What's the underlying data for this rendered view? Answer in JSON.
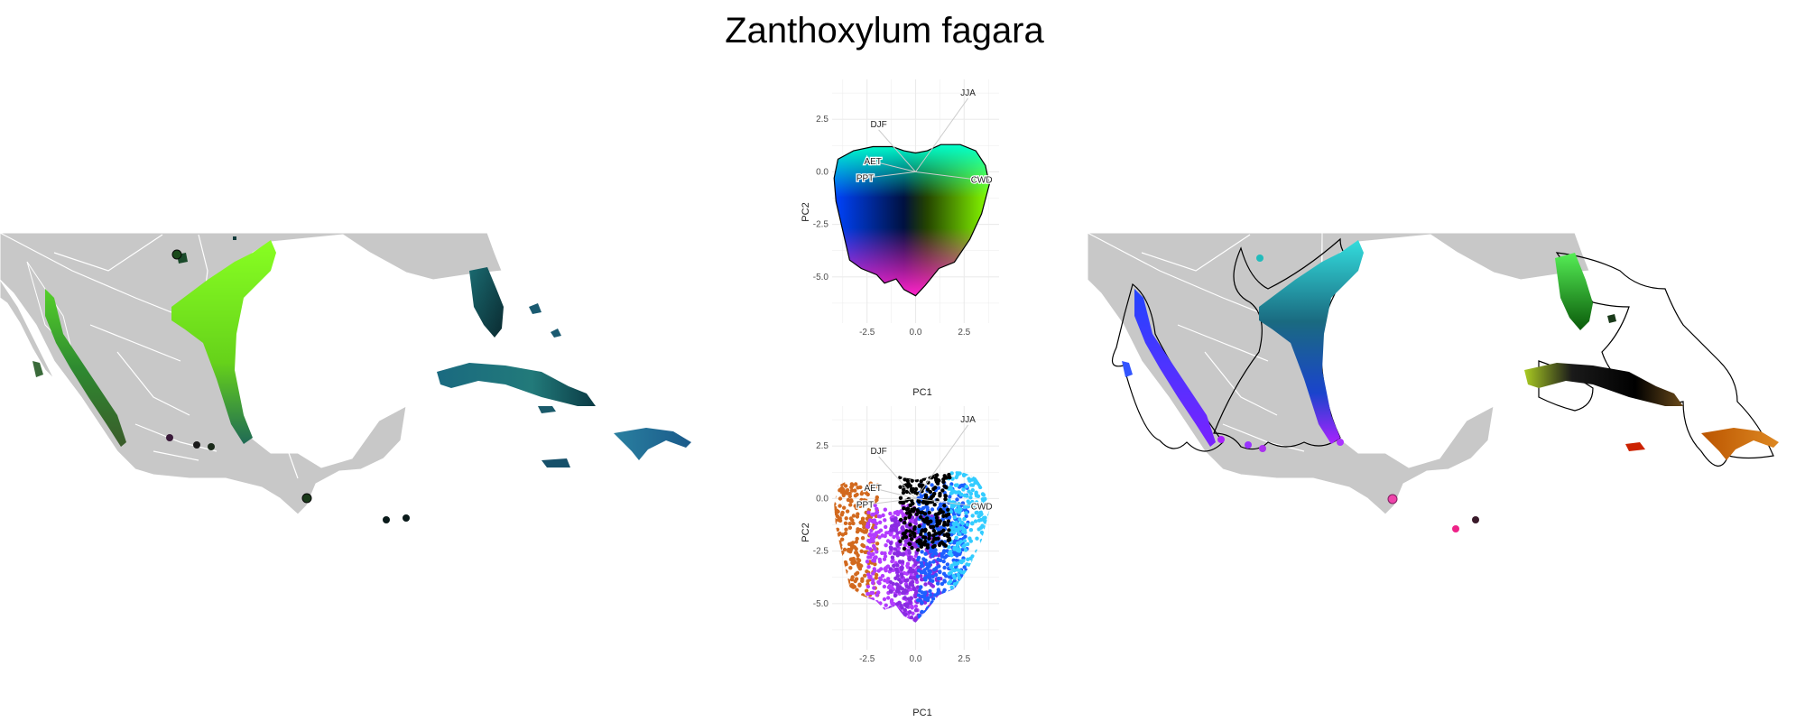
{
  "title": "Zanthoxylum fagara",
  "colors": {
    "land": "#c8c8c8",
    "border": "#ffffff",
    "grid": "#ebebeb"
  },
  "chart_data": [
    {
      "type": "scatter",
      "panel": "PCA colour-space (top)",
      "xlabel": "PC1",
      "ylabel": "PC2",
      "xticks": [
        "-2.5",
        "0.0",
        "2.5"
      ],
      "yticks": [
        "2.5",
        "0.0",
        "-2.5",
        "-5.0"
      ],
      "xlim": [
        -4.3,
        4.3
      ],
      "ylim": [
        -7.2,
        4.4
      ],
      "grid": true,
      "loadings": [
        {
          "label": "JJA",
          "x": 2.7,
          "y": 3.5
        },
        {
          "label": "DJF",
          "x": -1.9,
          "y": 2.0
        },
        {
          "label": "AET",
          "x": -2.2,
          "y": 0.5
        },
        {
          "label": "PPT",
          "x": -2.6,
          "y": -0.3
        },
        {
          "label": "CWD",
          "x": 3.4,
          "y": -0.4
        }
      ]
    },
    {
      "type": "scatter",
      "panel": "PCA cluster colours (bottom)",
      "xlabel": "PC1",
      "ylabel": "PC2",
      "xticks": [
        "-2.5",
        "0.0",
        "2.5"
      ],
      "yticks": [
        "2.5",
        "0.0",
        "-2.5",
        "-5.0"
      ],
      "xlim": [
        -4.3,
        4.3
      ],
      "ylim": [
        -7.2,
        4.4
      ],
      "grid": true,
      "loadings": [
        {
          "label": "JJA",
          "x": 2.7,
          "y": 3.5
        },
        {
          "label": "DJF",
          "x": -1.9,
          "y": 2.0
        },
        {
          "label": "AET",
          "x": -2.2,
          "y": 0.5
        },
        {
          "label": "PPT",
          "x": -2.6,
          "y": -0.3
        },
        {
          "label": "CWD",
          "x": 3.4,
          "y": -0.4
        }
      ],
      "series": [
        {
          "color": "#d2691e",
          "x_center": -3.2,
          "y_center": -2.5
        },
        {
          "color": "#b33cff",
          "x_center": -1.2,
          "y_center": -3.5
        },
        {
          "color": "#8a2be2",
          "x_center": 0.0,
          "y_center": -4.0
        },
        {
          "color": "#1e5fff",
          "x_center": 1.4,
          "y_center": -2.5
        },
        {
          "color": "#33ccff",
          "x_center": 3.0,
          "y_center": -2.0
        },
        {
          "color": "#000000",
          "x_center": 0.5,
          "y_center": 0.8
        }
      ]
    }
  ]
}
